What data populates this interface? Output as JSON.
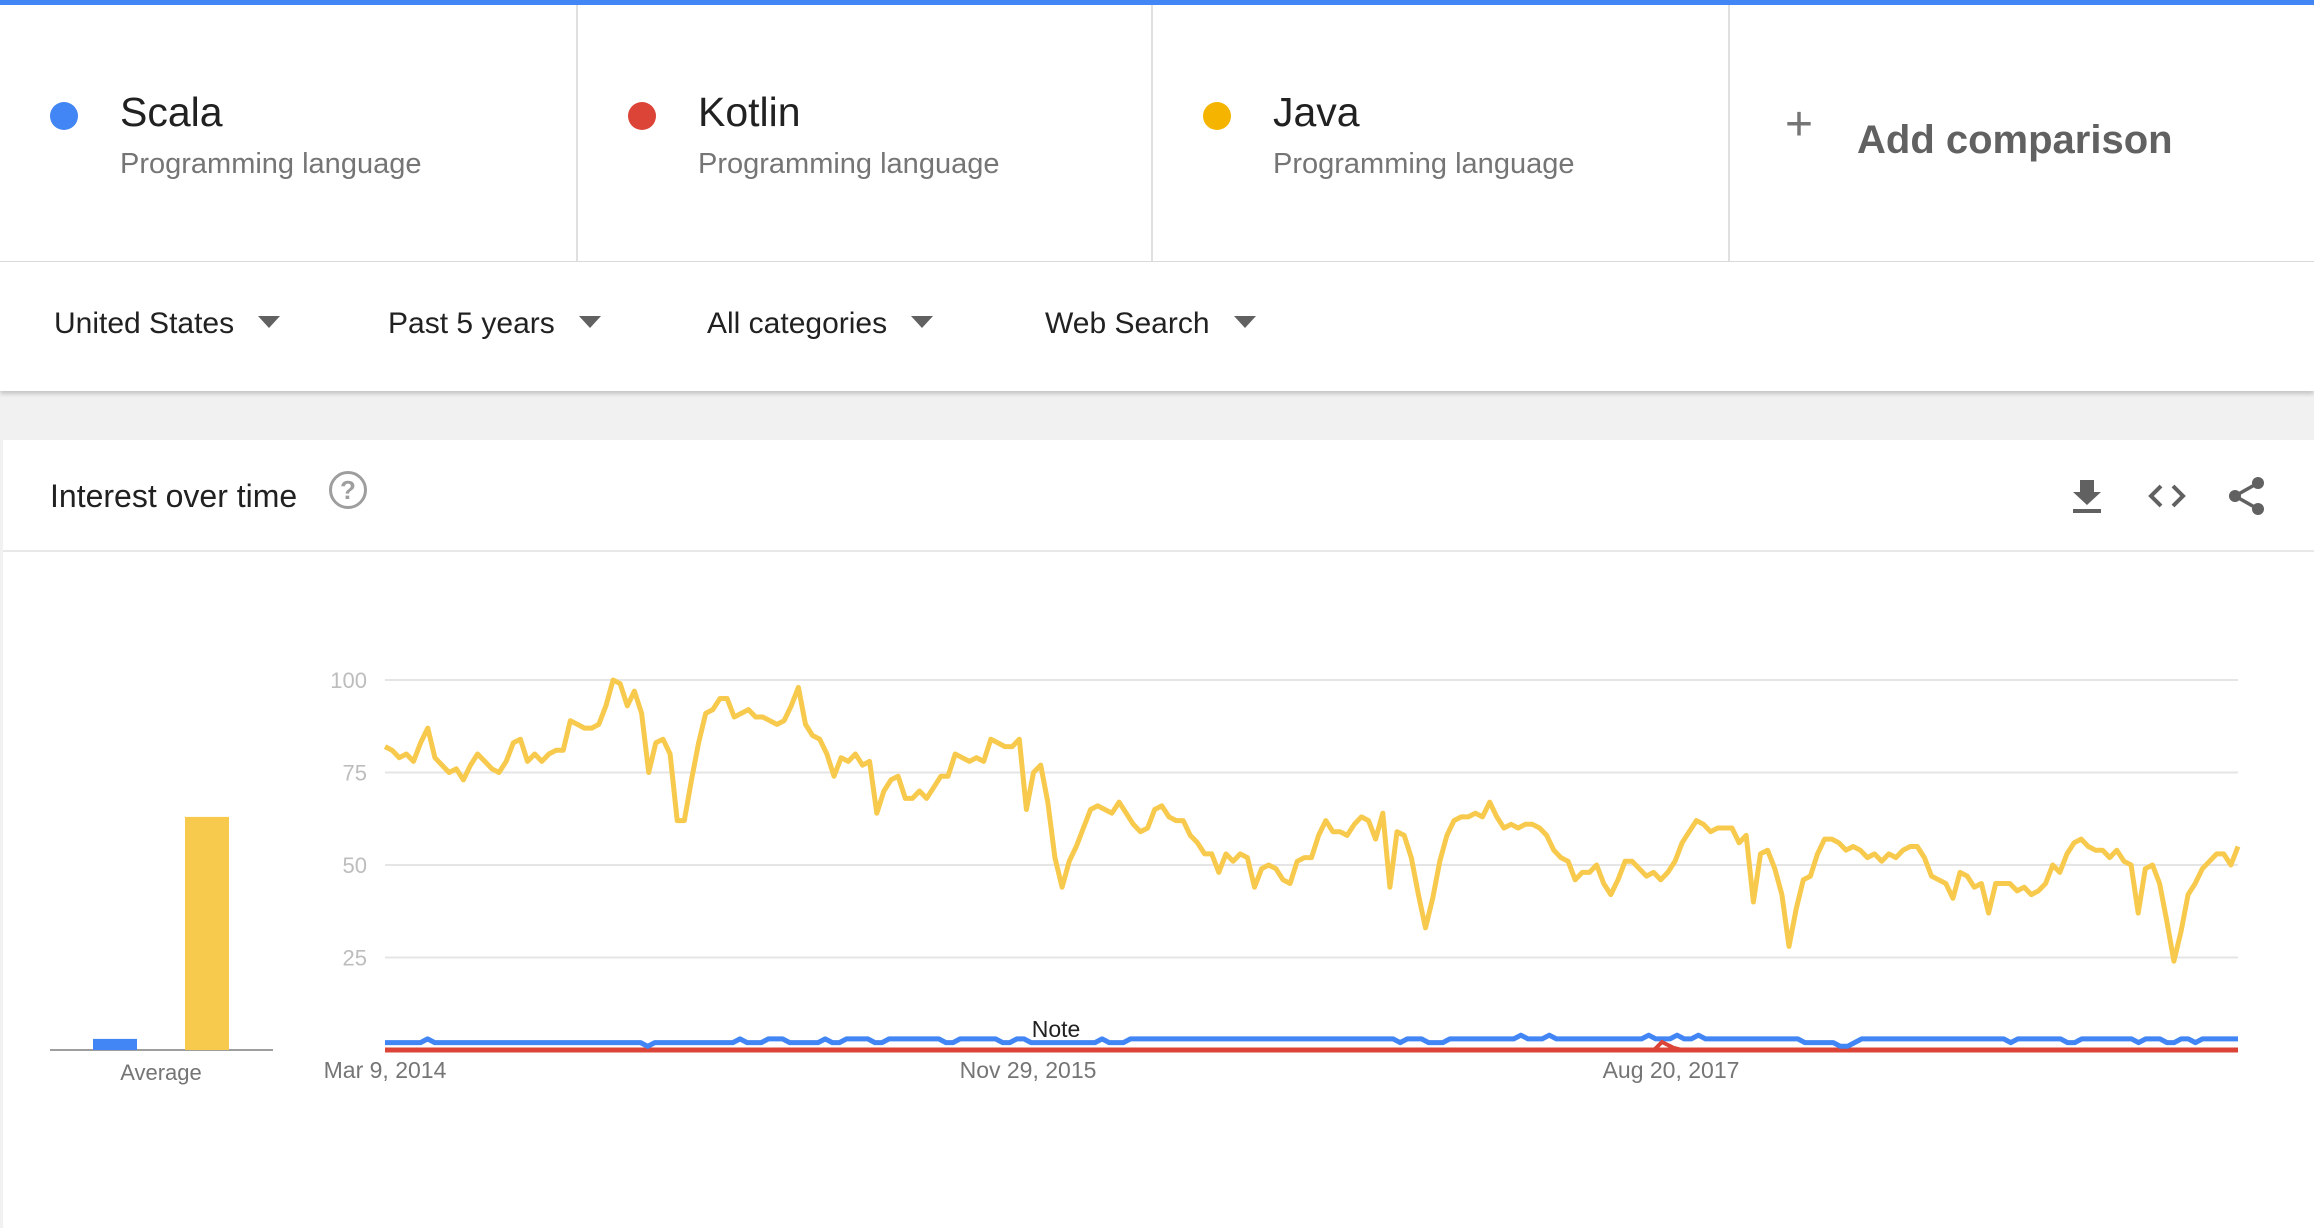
{
  "terms": [
    {
      "name": "Scala",
      "subtitle": "Programming language",
      "color": "#4285f4"
    },
    {
      "name": "Kotlin",
      "subtitle": "Programming language",
      "color": "#db4437"
    },
    {
      "name": "Java",
      "subtitle": "Programming language",
      "color": "#f4b400"
    }
  ],
  "add_comparison": {
    "icon": "plus-icon",
    "label": "Add comparison"
  },
  "filters": {
    "region": "United States",
    "time": "Past 5 years",
    "category": "All categories",
    "search_type": "Web Search"
  },
  "card": {
    "title": "Interest over time",
    "help_icon": "help-icon",
    "icons": [
      "download-icon",
      "embed-icon",
      "share-icon"
    ]
  },
  "chart_data": {
    "type": "line",
    "title": "",
    "yticks": [
      25,
      50,
      75,
      100
    ],
    "ylim": [
      0,
      100
    ],
    "xticks": [
      "Mar 9, 2014",
      "Nov 29, 2015",
      "Aug 20, 2017"
    ],
    "average_label": "Average",
    "note_label": "Note",
    "averages": [
      {
        "name": "Scala",
        "value": 3,
        "color": "#4285f4"
      },
      {
        "name": "Kotlin",
        "value": 0,
        "color": "#db4437"
      },
      {
        "name": "Java",
        "value": 63,
        "color": "#f7ca4d"
      }
    ],
    "series": [
      {
        "name": "Java",
        "color": "#f7ca4d",
        "values": [
          82,
          81,
          79,
          80,
          78,
          83,
          87,
          79,
          77,
          75,
          76,
          73,
          77,
          80,
          78,
          76,
          75,
          78,
          83,
          84,
          78,
          80,
          78,
          80,
          81,
          81,
          89,
          88,
          87,
          87,
          88,
          93,
          100,
          99,
          93,
          97,
          91,
          75,
          83,
          84,
          80,
          62,
          62,
          73,
          83,
          91,
          92,
          95,
          95,
          90,
          91,
          92,
          90,
          90,
          89,
          88,
          89,
          93,
          98,
          88,
          85,
          84,
          80,
          74,
          79,
          78,
          80,
          77,
          78,
          64,
          70,
          73,
          74,
          68,
          68,
          70,
          68,
          71,
          74,
          74,
          80,
          79,
          78,
          79,
          78,
          84,
          83,
          82,
          82,
          84,
          65,
          75,
          77,
          67,
          52,
          44,
          51,
          55,
          60,
          65,
          66,
          65,
          64,
          67,
          64,
          61,
          59,
          60,
          65,
          66,
          63,
          62,
          62,
          58,
          56,
          53,
          53,
          48,
          53,
          51,
          53,
          52,
          44,
          49,
          50,
          49,
          46,
          45,
          51,
          52,
          52,
          58,
          62,
          59,
          59,
          58,
          61,
          63,
          62,
          57,
          64,
          44,
          59,
          58,
          52,
          42,
          33,
          41,
          51,
          58,
          62,
          63,
          63,
          64,
          63,
          67,
          63,
          60,
          61,
          60,
          61,
          61,
          60,
          58,
          54,
          52,
          51,
          46,
          48,
          48,
          50,
          45,
          42,
          46,
          51,
          51,
          49,
          47,
          48,
          46,
          48,
          51,
          56,
          59,
          62,
          61,
          59,
          60,
          60,
          60,
          56,
          58,
          40,
          53,
          54,
          49,
          42,
          28,
          38,
          46,
          47,
          53,
          57,
          57,
          56,
          54,
          55,
          54,
          52,
          53,
          51,
          53,
          52,
          54,
          55,
          55,
          52,
          47,
          46,
          45,
          41,
          48,
          47,
          44,
          45,
          37,
          45,
          45,
          45,
          43,
          44,
          42,
          43,
          45,
          50,
          48,
          53,
          56,
          57,
          55,
          54,
          54,
          52,
          54,
          51,
          50,
          37,
          49,
          50,
          45,
          35,
          24,
          32,
          42,
          45,
          49,
          51,
          53,
          53,
          50,
          55
        ]
      },
      {
        "name": "Scala",
        "color": "#4285f4",
        "values": [
          2,
          2,
          2,
          2,
          2,
          2,
          3,
          2,
          2,
          2,
          2,
          2,
          2,
          2,
          2,
          2,
          2,
          2,
          2,
          2,
          2,
          2,
          2,
          2,
          2,
          2,
          2,
          2,
          2,
          2,
          2,
          2,
          2,
          2,
          2,
          2,
          2,
          1,
          2,
          2,
          2,
          2,
          2,
          2,
          2,
          2,
          2,
          2,
          2,
          2,
          3,
          2,
          2,
          2,
          3,
          3,
          3,
          2,
          2,
          2,
          2,
          2,
          3,
          2,
          2,
          3,
          3,
          3,
          3,
          2,
          2,
          3,
          3,
          3,
          3,
          3,
          3,
          3,
          3,
          2,
          2,
          3,
          3,
          3,
          3,
          3,
          3,
          2,
          2,
          3,
          3,
          2,
          2,
          2,
          2,
          2,
          2,
          2,
          2,
          2,
          2,
          3,
          2,
          2,
          2,
          3,
          3,
          3,
          3,
          3,
          3,
          3,
          3,
          3,
          3,
          3,
          3,
          3,
          3,
          3,
          3,
          3,
          3,
          3,
          3,
          3,
          3,
          3,
          3,
          3,
          3,
          3,
          3,
          3,
          3,
          3,
          3,
          3,
          3,
          3,
          3,
          3,
          3,
          2,
          3,
          3,
          3,
          2,
          2,
          2,
          3,
          3,
          3,
          3,
          3,
          3,
          3,
          3,
          3,
          3,
          4,
          3,
          3,
          3,
          4,
          3,
          3,
          3,
          3,
          3,
          3,
          3,
          3,
          3,
          3,
          3,
          3,
          3,
          4,
          3,
          3,
          3,
          4,
          3,
          3,
          4,
          3,
          3,
          3,
          3,
          3,
          3,
          3,
          3,
          3,
          3,
          3,
          3,
          3,
          3,
          2,
          2,
          2,
          2,
          2,
          1,
          1,
          2,
          3,
          3,
          3,
          3,
          3,
          3,
          3,
          3,
          3,
          3,
          3,
          3,
          3,
          3,
          3,
          3,
          3,
          3,
          3,
          3,
          3,
          2,
          3,
          3,
          3,
          3,
          3,
          3,
          3,
          2,
          2,
          3,
          3,
          3,
          3,
          3,
          3,
          3,
          3,
          2,
          3,
          3,
          3,
          2,
          2,
          3,
          3,
          2,
          3,
          3,
          3,
          3,
          3,
          3
        ]
      },
      {
        "name": "Kotlin",
        "color": "#db4437",
        "values": [
          0,
          0,
          0,
          0,
          0,
          0,
          0,
          0,
          0,
          0,
          0,
          0,
          0,
          0,
          0,
          0,
          0,
          0,
          0,
          0,
          0,
          0,
          0,
          0,
          0,
          0,
          0,
          0,
          0,
          0,
          0,
          0,
          0,
          0,
          0,
          0,
          0,
          0,
          0,
          0,
          0,
          0,
          0,
          0,
          0,
          0,
          0,
          0,
          0,
          0,
          0,
          0,
          0,
          0,
          0,
          0,
          0,
          0,
          0,
          0,
          0,
          0,
          0,
          0,
          0,
          0,
          0,
          0,
          0,
          0,
          0,
          0,
          0,
          0,
          0,
          0,
          0,
          0,
          0,
          0,
          0,
          0,
          0,
          0,
          0,
          0,
          0,
          0,
          0,
          0,
          0,
          0,
          0,
          0,
          0,
          0,
          0,
          0,
          0,
          0,
          0,
          0,
          0,
          0,
          0,
          0,
          0,
          0,
          0,
          0,
          0,
          0,
          0,
          0,
          0,
          0,
          0,
          0,
          0,
          0,
          0,
          0,
          0,
          0,
          0,
          0,
          0,
          0,
          0,
          0,
          0,
          0,
          0,
          0,
          0,
          0,
          0,
          0,
          0,
          0,
          0,
          0,
          0,
          0,
          0,
          0,
          0,
          0,
          0,
          0,
          0,
          0,
          0,
          0,
          0,
          0,
          0,
          0,
          0,
          0,
          0,
          0,
          0,
          0,
          0,
          0,
          0,
          0,
          0,
          0,
          0,
          0,
          0,
          0,
          0,
          0,
          0,
          0,
          0,
          0,
          0,
          0,
          0,
          0,
          0,
          0,
          0,
          0,
          0,
          0,
          0,
          0,
          0,
          0,
          0,
          0,
          0,
          0,
          0,
          0,
          0,
          0,
          0,
          0,
          0,
          0,
          0,
          0,
          0,
          0,
          0,
          0,
          0,
          0,
          0,
          0,
          0,
          0,
          0,
          0,
          0,
          0,
          0,
          0,
          0,
          0,
          0,
          0,
          0,
          0,
          0,
          0,
          0,
          0,
          0,
          0,
          0,
          0,
          0,
          0,
          0,
          0,
          0,
          0,
          0,
          0,
          0,
          0,
          0,
          0,
          0,
          0,
          0,
          0,
          0,
          0,
          0,
          0,
          0,
          0,
          0,
          0,
          0,
          0,
          0,
          0,
          0,
          0
        ]
      }
    ]
  }
}
